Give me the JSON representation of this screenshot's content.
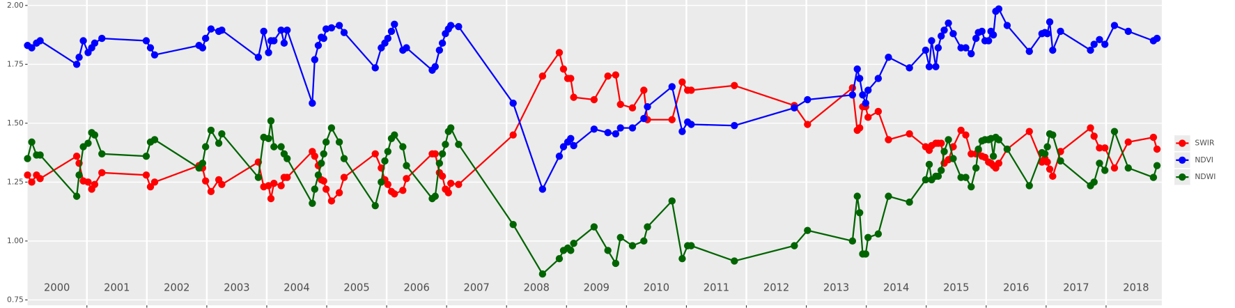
{
  "chart_data": {
    "type": "line",
    "xlim": [
      2000.01,
      2018.93
    ],
    "ylim": [
      0.727,
      2.023
    ],
    "yticks": [
      {
        "value": 0.75,
        "label": "0.75"
      },
      {
        "value": 1.0,
        "label": "1.00"
      },
      {
        "value": 1.25,
        "label": "1.25"
      },
      {
        "value": 1.5,
        "label": "1.50"
      },
      {
        "value": 1.75,
        "label": "1.75"
      },
      {
        "value": 2.0,
        "label": "2.00"
      }
    ],
    "vlines": [
      2001,
      2002,
      2003,
      2004,
      2005,
      2006,
      2007,
      2008,
      2009,
      2010,
      2011,
      2012,
      2013,
      2014,
      2015,
      2016,
      2017,
      2018
    ],
    "grid": true,
    "legend": "right",
    "annotations": [
      {
        "text": "2000",
        "x": 2000.5,
        "y": 0.8
      },
      {
        "text": "2001",
        "x": 2001.5,
        "y": 0.8
      },
      {
        "text": "2002",
        "x": 2002.5,
        "y": 0.8
      },
      {
        "text": "2003",
        "x": 2003.5,
        "y": 0.8
      },
      {
        "text": "2004",
        "x": 2004.5,
        "y": 0.8
      },
      {
        "text": "2005",
        "x": 2005.5,
        "y": 0.8
      },
      {
        "text": "2006",
        "x": 2006.5,
        "y": 0.8
      },
      {
        "text": "2007",
        "x": 2007.5,
        "y": 0.8
      },
      {
        "text": "2008",
        "x": 2008.5,
        "y": 0.8
      },
      {
        "text": "2009",
        "x": 2009.5,
        "y": 0.8
      },
      {
        "text": "2010",
        "x": 2010.5,
        "y": 0.8
      },
      {
        "text": "2011",
        "x": 2011.5,
        "y": 0.8
      },
      {
        "text": "2012",
        "x": 2012.5,
        "y": 0.8
      },
      {
        "text": "2013",
        "x": 2013.5,
        "y": 0.8
      },
      {
        "text": "2014",
        "x": 2014.5,
        "y": 0.8
      },
      {
        "text": "2015",
        "x": 2015.5,
        "y": 0.8
      },
      {
        "text": "2016",
        "x": 2016.5,
        "y": 0.8
      },
      {
        "text": "2017",
        "x": 2017.5,
        "y": 0.8
      },
      {
        "text": "2018",
        "x": 2018.5,
        "y": 0.8
      }
    ],
    "x": [
      2000.01,
      2000.08,
      2000.16,
      2000.22,
      2000.83,
      2000.87,
      2000.94,
      2001.02,
      2001.08,
      2001.13,
      2001.25,
      2001.99,
      2002.06,
      2002.13,
      2002.87,
      2002.93,
      2002.98,
      2003.07,
      2003.2,
      2003.25,
      2003.86,
      2003.95,
      2004.03,
      2004.07,
      2004.12,
      2004.24,
      2004.29,
      2004.34,
      2004.76,
      2004.8,
      2004.86,
      2004.91,
      2004.95,
      2004.99,
      2005.08,
      2005.21,
      2005.29,
      2005.81,
      2005.91,
      2005.97,
      2006.02,
      2006.08,
      2006.13,
      2006.27,
      2006.33,
      2006.76,
      2006.81,
      2006.88,
      2006.93,
      2006.98,
      2007.03,
      2007.07,
      2007.2,
      2008.11,
      2008.6,
      2008.88,
      2008.95,
      2009.02,
      2009.07,
      2009.12,
      2009.46,
      2009.69,
      2009.82,
      2009.9,
      2010.1,
      2010.29,
      2010.35,
      2010.76,
      2010.93,
      2011.02,
      2011.08,
      2011.8,
      2012.8,
      2013.02,
      2013.77,
      2013.85,
      2013.89,
      2013.94,
      2013.99,
      2014.03,
      2014.2,
      2014.37,
      2014.72,
      2014.99,
      2015.05,
      2015.09,
      2015.16,
      2015.2,
      2015.25,
      2015.3,
      2015.37,
      2015.45,
      2015.58,
      2015.66,
      2015.75,
      2015.83,
      2015.87,
      2015.93,
      2015.98,
      2016.04,
      2016.08,
      2016.12,
      2016.16,
      2016.21,
      2016.35,
      2016.72,
      2016.93,
      2016.98,
      2017.02,
      2017.06,
      2017.11,
      2017.24,
      2017.74,
      2017.8,
      2017.89,
      2017.98,
      2018.14,
      2018.37,
      2018.79,
      2018.85
    ],
    "series": [
      {
        "name": "SWIR",
        "color": "#ff0000",
        "values": [
          1.28,
          1.25,
          1.28,
          1.265,
          1.36,
          1.33,
          1.255,
          1.25,
          1.22,
          1.24,
          1.29,
          1.28,
          1.23,
          1.25,
          1.32,
          1.31,
          1.255,
          1.21,
          1.26,
          1.24,
          1.335,
          1.23,
          1.235,
          1.18,
          1.245,
          1.235,
          1.27,
          1.27,
          1.38,
          1.36,
          1.32,
          1.26,
          1.255,
          1.22,
          1.17,
          1.205,
          1.27,
          1.37,
          1.31,
          1.26,
          1.24,
          1.21,
          1.2,
          1.215,
          1.265,
          1.37,
          1.37,
          1.29,
          1.275,
          1.22,
          1.205,
          1.245,
          1.24,
          1.45,
          1.7,
          1.8,
          1.73,
          1.69,
          1.69,
          1.61,
          1.6,
          1.7,
          1.705,
          1.58,
          1.565,
          1.64,
          1.515,
          1.515,
          1.675,
          1.64,
          1.64,
          1.66,
          1.575,
          1.495,
          1.65,
          1.47,
          1.48,
          1.57,
          1.57,
          1.525,
          1.55,
          1.43,
          1.455,
          1.4,
          1.385,
          1.405,
          1.415,
          1.415,
          1.415,
          1.33,
          1.345,
          1.4,
          1.47,
          1.45,
          1.37,
          1.37,
          1.385,
          1.36,
          1.355,
          1.335,
          1.33,
          1.32,
          1.31,
          1.33,
          1.39,
          1.465,
          1.335,
          1.35,
          1.335,
          1.305,
          1.275,
          1.38,
          1.48,
          1.445,
          1.395,
          1.395,
          1.31,
          1.42,
          1.44,
          1.39
        ]
      },
      {
        "name": "NDVI",
        "color": "#0000ff",
        "values": [
          1.83,
          1.82,
          1.84,
          1.85,
          1.75,
          1.78,
          1.85,
          1.8,
          1.82,
          1.84,
          1.86,
          1.85,
          1.82,
          1.79,
          1.83,
          1.82,
          1.86,
          1.9,
          1.89,
          1.895,
          1.78,
          1.89,
          1.8,
          1.85,
          1.85,
          1.895,
          1.84,
          1.895,
          1.585,
          1.77,
          1.83,
          1.865,
          1.86,
          1.9,
          1.905,
          1.915,
          1.885,
          1.735,
          1.82,
          1.84,
          1.86,
          1.89,
          1.92,
          1.81,
          1.82,
          1.725,
          1.74,
          1.81,
          1.84,
          1.88,
          1.9,
          1.915,
          1.91,
          1.585,
          1.22,
          1.36,
          1.4,
          1.42,
          1.435,
          1.405,
          1.475,
          1.46,
          1.455,
          1.48,
          1.48,
          1.52,
          1.57,
          1.655,
          1.465,
          1.505,
          1.495,
          1.49,
          1.565,
          1.6,
          1.62,
          1.73,
          1.69,
          1.62,
          1.585,
          1.64,
          1.69,
          1.78,
          1.735,
          1.81,
          1.74,
          1.85,
          1.74,
          1.82,
          1.87,
          1.895,
          1.925,
          1.88,
          1.82,
          1.82,
          1.795,
          1.86,
          1.885,
          1.89,
          1.85,
          1.85,
          1.89,
          1.875,
          1.975,
          1.985,
          1.915,
          1.805,
          1.88,
          1.885,
          1.88,
          1.93,
          1.81,
          1.89,
          1.81,
          1.835,
          1.855,
          1.835,
          1.915,
          1.89,
          1.85,
          1.86
        ]
      },
      {
        "name": "NDWI",
        "color": "#006400",
        "values": [
          1.35,
          1.42,
          1.365,
          1.365,
          1.19,
          1.28,
          1.4,
          1.415,
          1.46,
          1.45,
          1.37,
          1.36,
          1.42,
          1.43,
          1.31,
          1.33,
          1.4,
          1.47,
          1.415,
          1.455,
          1.27,
          1.44,
          1.435,
          1.51,
          1.4,
          1.4,
          1.37,
          1.35,
          1.16,
          1.22,
          1.28,
          1.33,
          1.37,
          1.42,
          1.48,
          1.42,
          1.35,
          1.15,
          1.25,
          1.34,
          1.38,
          1.435,
          1.45,
          1.4,
          1.32,
          1.18,
          1.19,
          1.33,
          1.37,
          1.41,
          1.465,
          1.48,
          1.41,
          1.07,
          0.86,
          0.925,
          0.96,
          0.97,
          0.96,
          0.99,
          1.06,
          0.96,
          0.905,
          1.015,
          0.98,
          1.0,
          1.06,
          1.17,
          0.925,
          0.98,
          0.98,
          0.915,
          0.98,
          1.045,
          1.0,
          1.19,
          1.12,
          0.945,
          0.945,
          1.015,
          1.03,
          1.19,
          1.165,
          1.26,
          1.325,
          1.26,
          1.275,
          1.275,
          1.3,
          1.38,
          1.43,
          1.35,
          1.27,
          1.27,
          1.23,
          1.31,
          1.39,
          1.425,
          1.43,
          1.43,
          1.435,
          1.36,
          1.44,
          1.43,
          1.39,
          1.235,
          1.375,
          1.37,
          1.4,
          1.455,
          1.45,
          1.34,
          1.235,
          1.25,
          1.33,
          1.3,
          1.465,
          1.31,
          1.27,
          1.32
        ]
      }
    ]
  }
}
